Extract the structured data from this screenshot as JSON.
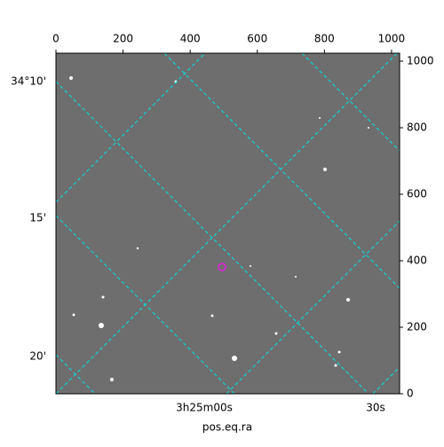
{
  "chart_data": {
    "type": "image",
    "xlim": [
      0,
      1024
    ],
    "ylim": [
      0,
      1024
    ],
    "xticks": [
      0,
      200,
      400,
      600,
      800,
      1000
    ],
    "yticks": [
      0,
      200,
      400,
      600,
      800,
      1000
    ],
    "ra_tick_labels": [
      "3h25m00s",
      "30s"
    ],
    "dec_tick_labels": [
      "34°10'",
      "15'",
      "20'"
    ],
    "xlabel": "pos.eq.ra",
    "markers": [
      {
        "x": 495,
        "y": 381,
        "color": "#e020e0"
      }
    ],
    "grid_color": "#00e5e5"
  }
}
